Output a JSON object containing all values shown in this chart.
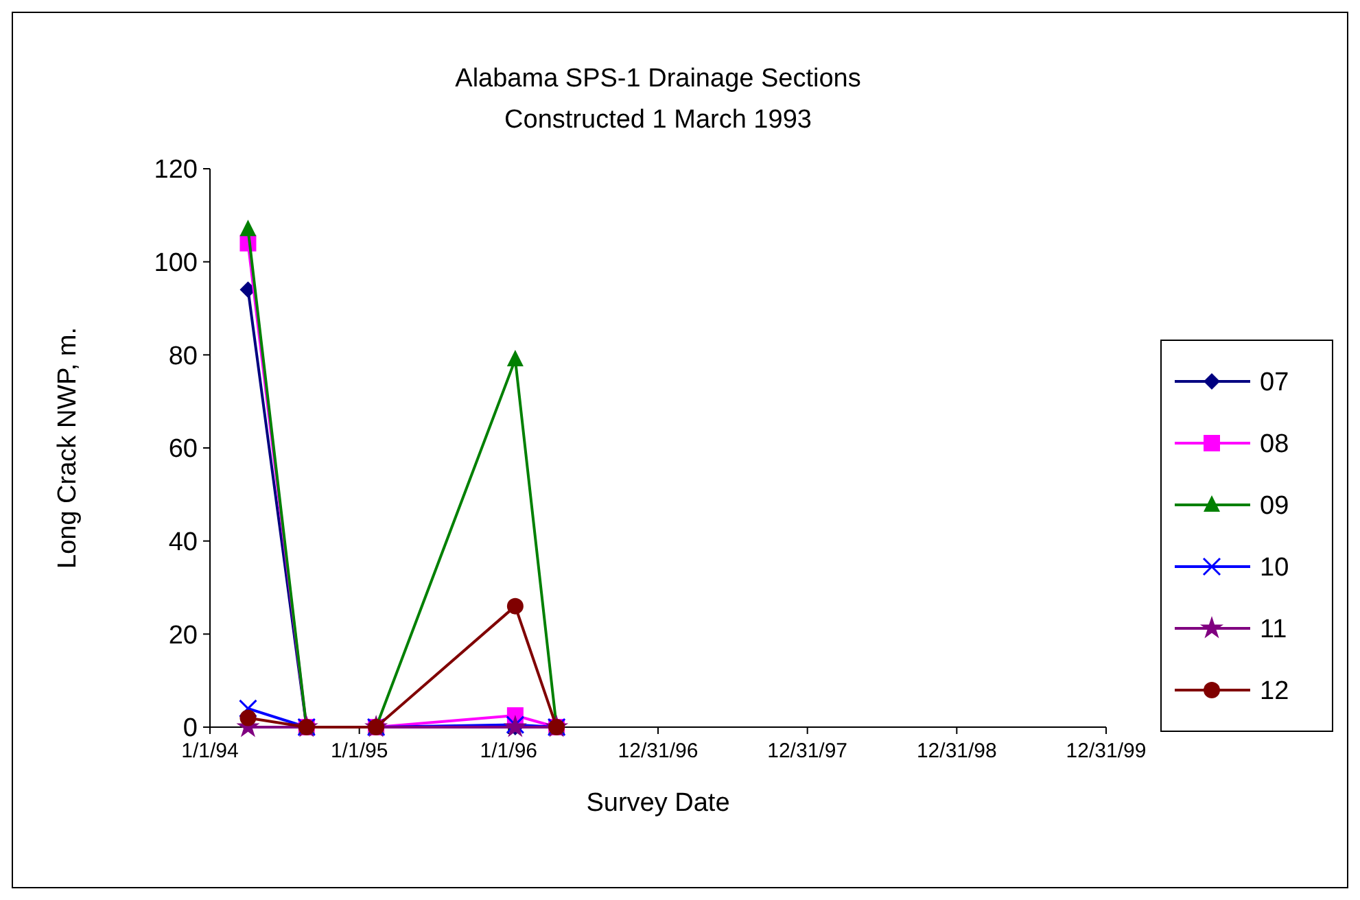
{
  "chart_data": {
    "type": "line",
    "title": "Alabama SPS-1 Drainage Sections",
    "subtitle": "Constructed 1 March 1993",
    "xlabel": "Survey Date",
    "ylabel": "Long Crack NWP, m.",
    "x": [
      "1994-04-04",
      "1994-08-25",
      "1995-02-11",
      "1996-01-17",
      "1996-04-27"
    ],
    "xlim": [
      "1994-01-01",
      "1999-12-31"
    ],
    "xticks": [
      {
        "value": "1994-01-01",
        "label": "1/1/94"
      },
      {
        "value": "1995-01-01",
        "label": "1/1/95"
      },
      {
        "value": "1996-01-01",
        "label": "1/1/96"
      },
      {
        "value": "1996-12-31",
        "label": "12/31/96"
      },
      {
        "value": "1997-12-31",
        "label": "12/31/97"
      },
      {
        "value": "1998-12-31",
        "label": "12/31/98"
      },
      {
        "value": "1999-12-31",
        "label": "12/31/99"
      }
    ],
    "ylim": [
      0,
      120
    ],
    "yticks": [
      0,
      20,
      40,
      60,
      80,
      100,
      120
    ],
    "grid": false,
    "legend": "right",
    "series": [
      {
        "name": "07",
        "color": "#000080",
        "marker": "diamond",
        "values": [
          94,
          0,
          0,
          0,
          0
        ]
      },
      {
        "name": "08",
        "color": "#ff00ff",
        "marker": "square",
        "values": [
          104,
          0,
          0,
          2.5,
          0
        ]
      },
      {
        "name": "09",
        "color": "#008000",
        "marker": "triangle",
        "values": [
          107,
          0,
          0,
          79,
          0
        ]
      },
      {
        "name": "10",
        "color": "#0000ff",
        "marker": "cross",
        "values": [
          4,
          0,
          0,
          0.5,
          0
        ]
      },
      {
        "name": "11",
        "color": "#800080",
        "marker": "star",
        "values": [
          0,
          0,
          0,
          0,
          0
        ]
      },
      {
        "name": "12",
        "color": "#800000",
        "marker": "circle",
        "values": [
          2,
          0,
          0,
          26,
          0
        ]
      }
    ]
  }
}
